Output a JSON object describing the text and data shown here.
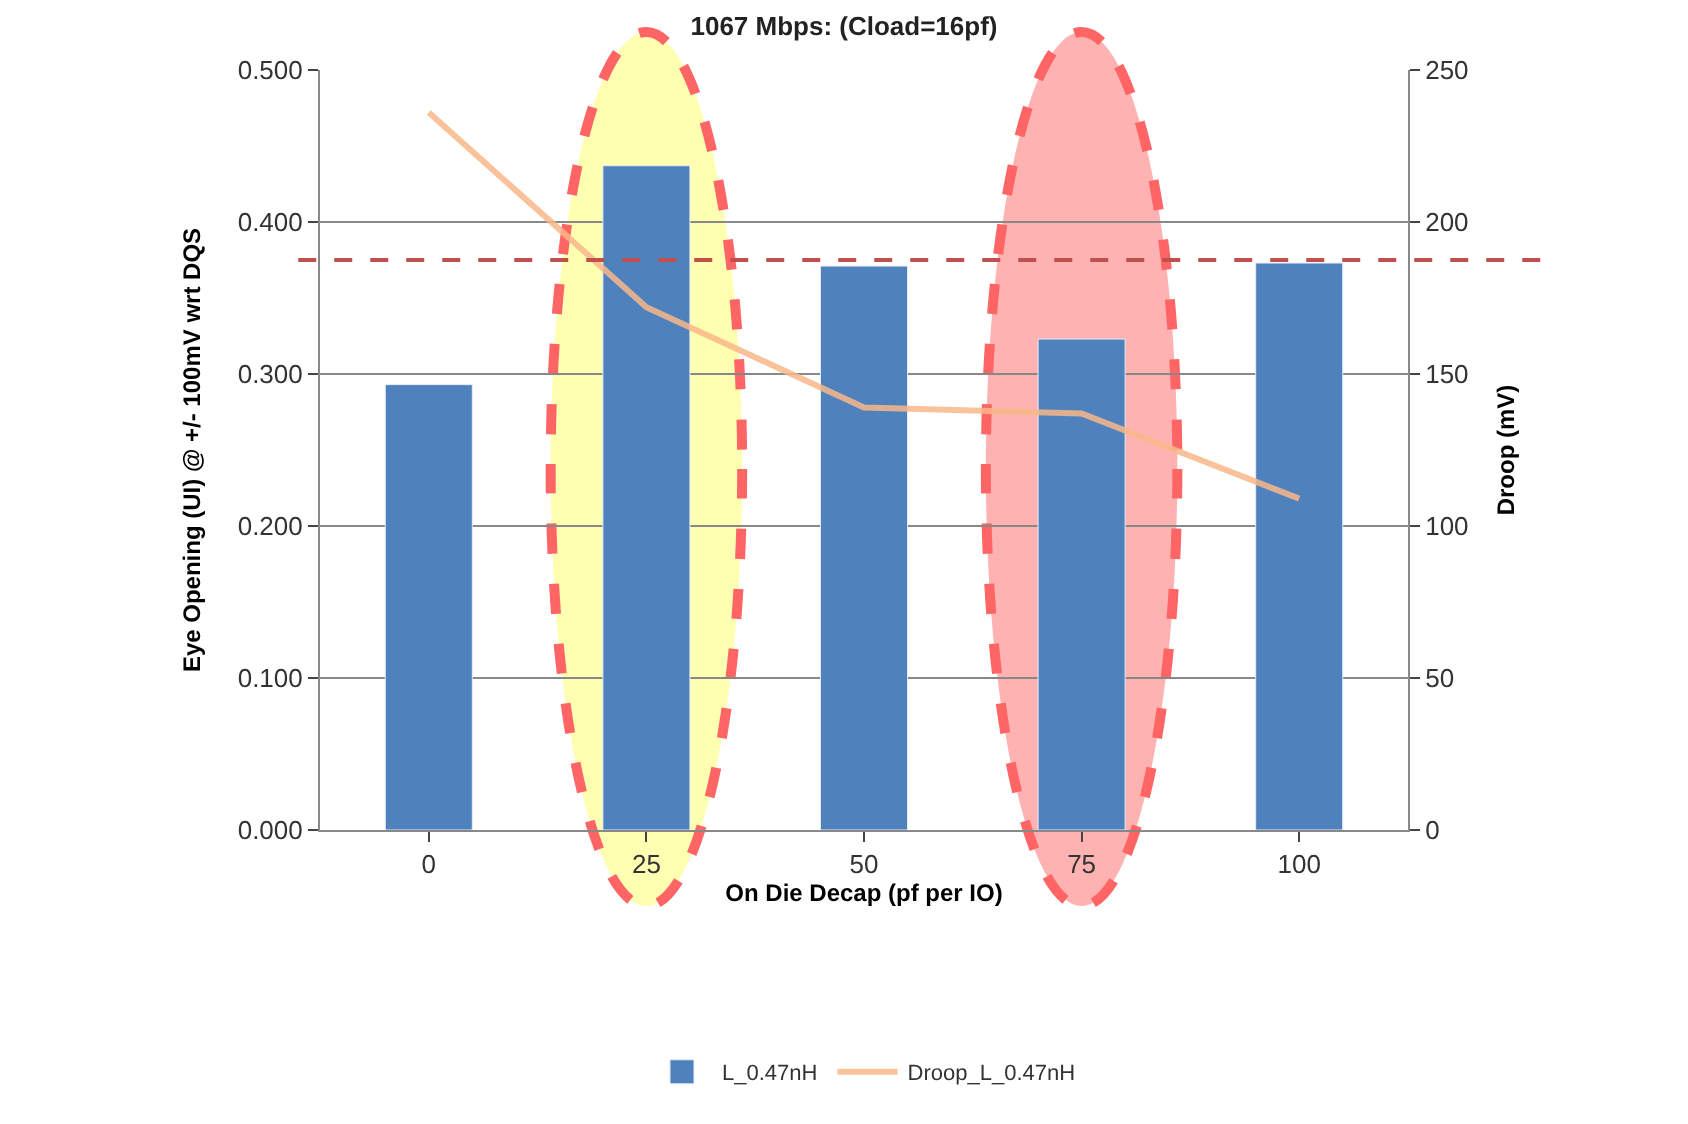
{
  "chart_data": {
    "type": "bar",
    "title": "1067 Mbps: (Cload=16pf)",
    "xlabel": "On Die Decap (pf per IO)",
    "ylabel": "Eye Opening (UI) @ +/- 100mV wrt DQS",
    "y2label": "Droop (mV)",
    "categories": [
      "0",
      "25",
      "50",
      "75",
      "100"
    ],
    "series": [
      {
        "name": "L_0.47nH",
        "color": "#4f81bd",
        "values": [
          0.293,
          0.437,
          0.371,
          0.323,
          0.373
        ]
      },
      {
        "name": "Droop_L_0.47nH",
        "type": "line",
        "axis": "y2",
        "color": "#f9b88a",
        "values": [
          236,
          172,
          139,
          137,
          109
        ]
      }
    ],
    "ylim": [
      0,
      0.5
    ],
    "yticks": [
      {
        "value": 0,
        "label": "0.000"
      },
      {
        "value": 0.1,
        "label": "0.100"
      },
      {
        "value": 0.2,
        "label": "0.200"
      },
      {
        "value": 0.3,
        "label": "0.300"
      },
      {
        "value": 0.4,
        "label": "0.400"
      },
      {
        "value": 0.5,
        "label": "0.500"
      }
    ],
    "y2lim": [
      0,
      250
    ],
    "y2ticks": [
      0,
      50,
      100,
      150,
      200,
      250
    ],
    "ref_lines": [
      {
        "axis": "y",
        "value": 0.375,
        "color": "#c0504d",
        "line_style": "dashed"
      }
    ],
    "grid": "y",
    "legend": "bottom",
    "marker": "none"
  }
}
